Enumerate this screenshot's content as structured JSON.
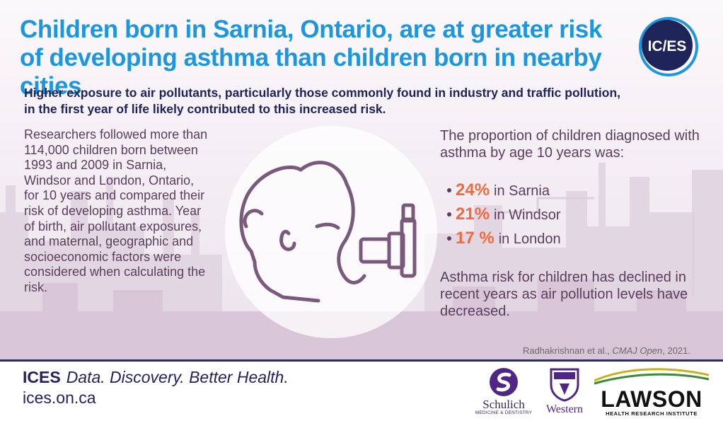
{
  "header": {
    "title": "Children born in Sarnia, Ontario, are at greater risk of developing asthma than children born in nearby cities",
    "logo_text": "IC/ES",
    "subtitle": "Higher exposure to air pollutants, particularly those commonly found in industry and traffic pollution, in the first year of life likely contributed to this increased risk."
  },
  "body": {
    "left_paragraph": "Researchers followed more than 114,000 children born between 1993 and 2009 in Sarnia, Windsor and London, Ontario, for 10 years and compared their risk of developing asthma. Year of birth, air pollutant exposures, and maternal, geographic and socioeconomic factors were considered when calculating the risk.",
    "right_intro": "The proportion of children diagnosed with asthma by age 10 years was:",
    "stats": [
      {
        "percent": "24%",
        "label": "in Sarnia"
      },
      {
        "percent": "21%",
        "label": "in Windsor"
      },
      {
        "percent": "17 %",
        "label": "in London"
      }
    ],
    "right_note": "Asthma risk for children has declined in recent years as air pollution levels have decreased."
  },
  "citation": {
    "authors": "Radhakrishnan et al., ",
    "journal": "CMAJ Open",
    "year": ", 2021."
  },
  "footer": {
    "brand": "ICES",
    "tagline": "Data. Discovery. Better Health.",
    "url": "ices.on.ca",
    "partners": {
      "schulich_name": "Schulich",
      "schulich_sub": "MEDICINE & DENTISTRY",
      "western_name": "Western",
      "lawson_name": "LAWSON",
      "lawson_sub": "HEALTH RESEARCH INSTITUTE"
    }
  },
  "colors": {
    "title_blue": "#1b96e0",
    "navy": "#1e2358",
    "text_plum": "#5a3e5c",
    "accent_orange": "#f2693b",
    "illustration_line": "#7a5a7c"
  }
}
